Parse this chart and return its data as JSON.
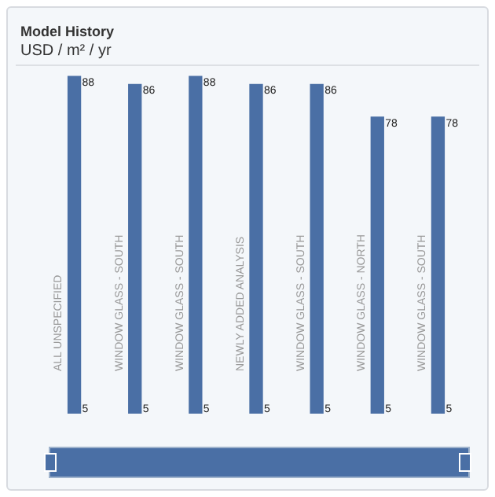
{
  "chart_data": {
    "type": "bar",
    "title": "Model History",
    "subtitle": "USD / m² / yr",
    "categories": [
      "ALL UNSPECIFIED",
      "WINDOW GLASS - SOUTH",
      "WINDOW GLASS - SOUTH",
      "NEWLY ADDED ANALYSIS",
      "WINDOW GLASS - SOUTH",
      "WINDOW GLASS - NORTH",
      "WINDOW GLASS - SOUTH"
    ],
    "values": [
      88,
      86,
      88,
      86,
      86,
      78,
      78
    ],
    "data_labels": true,
    "annotations": [
      "5",
      "5",
      "5",
      "5",
      "5",
      "5",
      "5"
    ],
    "color": "#4a6fa5",
    "ylim": [
      5,
      89
    ],
    "grid": false,
    "legend": false
  }
}
